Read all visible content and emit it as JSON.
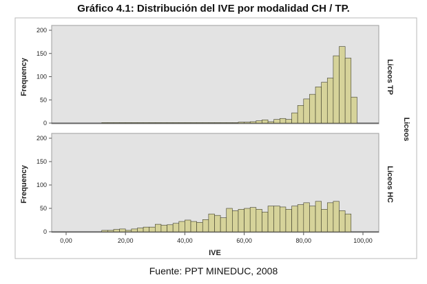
{
  "title": "Gráfico 4.1: Distribución del IVE por modalidad CH / TP.",
  "source": "Fuente: PPT MINEDUC, 2008",
  "colors": {
    "bar_fill": "#d6d39a",
    "bar_stroke": "#3b3b2a",
    "panel_bg": "#e3e3e3",
    "frame": "#9c9c9c"
  },
  "chart_data": {
    "type": "bar",
    "xlabel": "IVE",
    "ylabel": "Frequency",
    "facet_label": "Liceos",
    "xlim": [
      0,
      100
    ],
    "ylim": [
      0,
      200
    ],
    "x_ticks": [
      "0,00",
      "20,00",
      "40,00",
      "60,00",
      "80,00",
      "100,00"
    ],
    "y_ticks": [
      "0",
      "50",
      "100",
      "150",
      "200"
    ],
    "bin_start": 2,
    "bin_width": 2,
    "panels": [
      {
        "label": "Liceos TP",
        "values": [
          0,
          0,
          0,
          0,
          0,
          1,
          1,
          1,
          1,
          1,
          1,
          1,
          1,
          1,
          1,
          1,
          1,
          1,
          1,
          1,
          1,
          1,
          1,
          1,
          1,
          1,
          1,
          1,
          2,
          2,
          3,
          5,
          7,
          3,
          8,
          10,
          8,
          22,
          38,
          52,
          62,
          78,
          88,
          97,
          145,
          165,
          140,
          56
        ]
      },
      {
        "label": "Liceos HC",
        "values": [
          0,
          0,
          0,
          0,
          0,
          3,
          3,
          5,
          6,
          3,
          6,
          8,
          10,
          10,
          16,
          14,
          15,
          18,
          22,
          25,
          22,
          20,
          26,
          38,
          35,
          30,
          50,
          45,
          48,
          50,
          52,
          48,
          42,
          55,
          55,
          53,
          48,
          55,
          58,
          62,
          55,
          65,
          48,
          62,
          65,
          45,
          38
        ]
      }
    ]
  }
}
